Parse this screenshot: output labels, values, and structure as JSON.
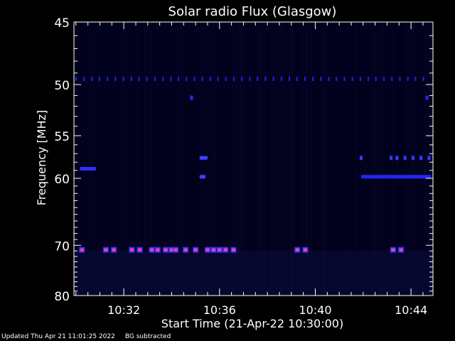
{
  "chart_data": {
    "type": "heatmap",
    "title": "Solar radio Flux (Glasgow)",
    "xlabel": "Start Time (21-Apr-22 10:30:00)",
    "ylabel": "Frequency [MHz]",
    "x_ticks": [
      "10:32",
      "10:36",
      "10:40",
      "10:44"
    ],
    "y_ticks": [
      45,
      50,
      55,
      60,
      70,
      80
    ],
    "xlim": [
      "10:29:55",
      "10:44:55"
    ],
    "ylim": [
      80,
      45
    ],
    "y_scale": "reciprocal",
    "colors": {
      "background": "#00001a",
      "low": "#1818c8",
      "mid": "#4040ff",
      "high": "#ff40a0"
    },
    "features": [
      {
        "freq": 49.5,
        "kind": "periodic-dots",
        "period_min": 0.33,
        "start": "10:30:00",
        "end": "10:44:50",
        "color": "#2020ff"
      },
      {
        "freq": 51.2,
        "kind": "dots",
        "times": [
          "10:34:50",
          "10:44:40"
        ],
        "color": "#2828ff"
      },
      {
        "freq": 57.5,
        "kind": "segment",
        "start": "10:35:10",
        "end": "10:35:30",
        "color": "#4040ff"
      },
      {
        "freq": 57.5,
        "kind": "dots",
        "times": [
          "10:41:55",
          "10:43:10",
          "10:43:25",
          "10:43:45",
          "10:44:05",
          "10:44:25",
          "10:44:45"
        ],
        "color": "#3838ff"
      },
      {
        "freq": 58.8,
        "kind": "segment",
        "start": "10:30:10",
        "end": "10:30:50",
        "color": "#3030ff"
      },
      {
        "freq": 59.8,
        "kind": "segment",
        "start": "10:35:10",
        "end": "10:35:25",
        "color": "#4040ff"
      },
      {
        "freq": 59.8,
        "kind": "segment",
        "start": "10:41:55",
        "end": "10:44:50",
        "color": "#2424ff"
      },
      {
        "freq": 70.8,
        "kind": "bursts",
        "times": [
          "10:30:15",
          "10:31:15",
          "10:31:35",
          "10:32:20",
          "10:32:40",
          "10:33:10",
          "10:33:25",
          "10:33:45",
          "10:34:00",
          "10:34:10",
          "10:34:35",
          "10:35:00",
          "10:35:30",
          "10:35:45",
          "10:36:00",
          "10:36:15",
          "10:36:35",
          "10:39:15",
          "10:39:35",
          "10:43:15",
          "10:43:35"
        ],
        "color": "#ff40a0"
      }
    ]
  },
  "footer": {
    "updated": "Updated Thu Apr 21 11:01:25 2022",
    "note": "BG subtracted"
  }
}
